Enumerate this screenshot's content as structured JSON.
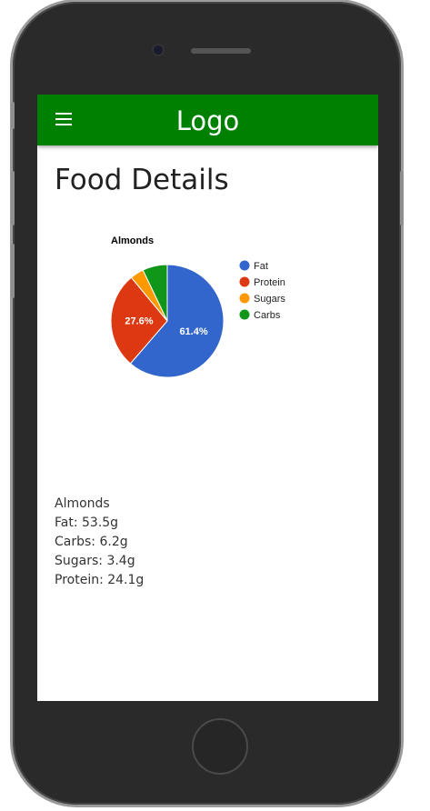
{
  "app": {
    "logo": "Logo",
    "menu_icon": "hamburger-menu-icon",
    "accent_color": "#008000"
  },
  "page": {
    "title": "Food Details"
  },
  "chart_data": {
    "type": "pie",
    "title": "Almonds",
    "legend_position": "right",
    "categories": [
      "Fat",
      "Protein",
      "Sugars",
      "Carbs"
    ],
    "values": [
      53.5,
      24.1,
      3.4,
      6.2
    ],
    "colors": [
      "#3366cc",
      "#dc3912",
      "#ff9900",
      "#109618"
    ],
    "data_labels": [
      "61.4%",
      "27.6%",
      "",
      ""
    ]
  },
  "details": {
    "name": "Almonds",
    "fat": "Fat: 53.5g",
    "carbs": "Carbs: 6.2g",
    "sugars": "Sugars: 3.4g",
    "protein": "Protein: 24.1g"
  }
}
